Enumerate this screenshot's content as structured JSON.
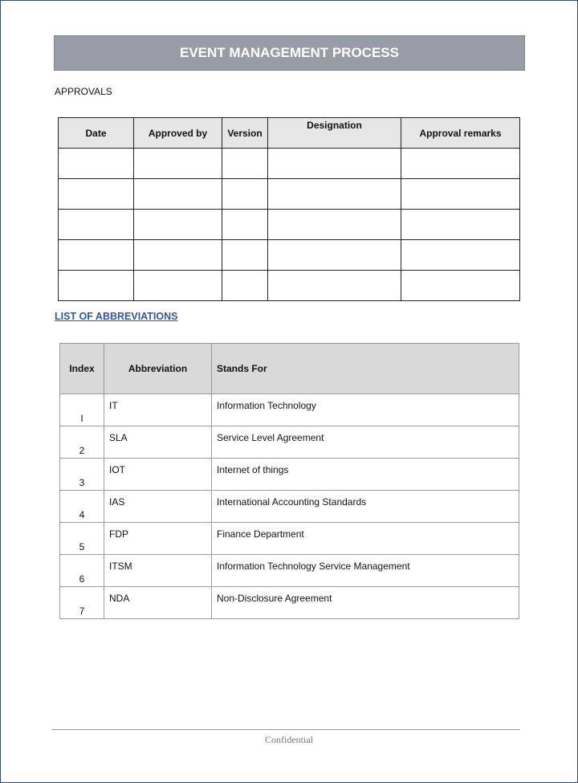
{
  "title": "EVENT MANAGEMENT PROCESS",
  "approvals": {
    "label": "APPROVALS",
    "headers": [
      "Date",
      "Approved by",
      "Version",
      "Designation",
      "Approval remarks"
    ],
    "empty_rows": 5
  },
  "abbreviations": {
    "heading": "LIST OF ABBREVIATIONS",
    "headers": [
      "Index",
      "Abbreviation",
      "Stands For"
    ],
    "rows": [
      [
        "I",
        "IT",
        "Information Technology"
      ],
      [
        "2",
        "SLA",
        "Service Level Agreement"
      ],
      [
        "3",
        "IOT",
        "Internet of things"
      ],
      [
        "4",
        "IAS",
        "International Accounting Standards"
      ],
      [
        "5",
        "FDP",
        "Finance Department"
      ],
      [
        "6",
        "ITSM",
        "Information Technology Service Management"
      ],
      [
        "7",
        "NDA",
        "Non-Disclosure Agreement"
      ]
    ]
  },
  "footer": "Confidential",
  "colors": {
    "title_bar": "#979ca6",
    "heading_link": "#2f55a4",
    "header_fill": "#d9d9d9"
  }
}
